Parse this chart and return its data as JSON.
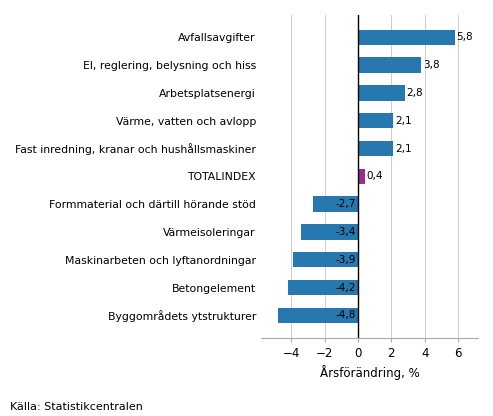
{
  "categories": [
    "Byggområdets ytstrukturer",
    "Betongelement",
    "Maskinarbeten och lyftanordningar",
    "Värmeisoleringar",
    "Formmaterial och därtill hörande stöd",
    "TOTALINDEX",
    "Fast inredning, kranar och hushållsmaskiner",
    "Värme, vatten och avlopp",
    "Arbetsplatsenergi",
    "El, reglering, belysning och hiss",
    "Avfallsavgifter"
  ],
  "values": [
    -4.8,
    -4.2,
    -3.9,
    -3.4,
    -2.7,
    0.4,
    2.1,
    2.1,
    2.8,
    3.8,
    5.8
  ],
  "bar_colors": [
    "#2878b0",
    "#2878b0",
    "#2878b0",
    "#2878b0",
    "#2878b0",
    "#9B2D8E",
    "#2878b0",
    "#2878b0",
    "#2878b0",
    "#2878b0",
    "#2878b0"
  ],
  "xlabel": "Årsförändring, %",
  "source": "Källa: Statistikcentralen",
  "xlim": [
    -5.8,
    7.2
  ],
  "xticks": [
    -4,
    -2,
    0,
    2,
    4,
    6
  ],
  "value_fontsize": 7.5,
  "label_fontsize": 7.8,
  "xlabel_fontsize": 8.5,
  "source_fontsize": 8.0,
  "bar_height": 0.55,
  "figure_bg": "#FFFFFF",
  "axes_bg": "#FFFFFF",
  "grid_color": "#CCCCCC",
  "spine_color": "#AAAAAA"
}
